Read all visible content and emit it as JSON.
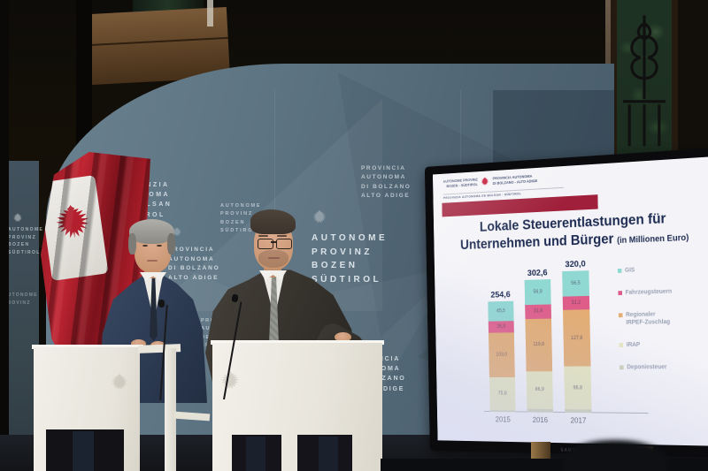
{
  "backdrop": {
    "blocks": [
      {
        "text": "PROVINZIA\nAUTONOMA\nDE BULSAN\nSÜDTIROL"
      },
      {
        "text": "AUTONOME\nPROVINZ\nBOZEN\nSÜDTIROL"
      },
      {
        "text": "AUTONOME\nPROVINZ\nBOZEN\nSÜDTIROL"
      },
      {
        "text": "PROVINCIA\nAUTONOMA\nDI BOLZANO\nALTO ADIGE"
      },
      {
        "text": "PROVINZIA\nAUTONOMA\nDE BULSAN\nSÜDTIROL"
      },
      {
        "text": "PROVINCIA\nAUTONOMA\nDI BOLZANO\nALTO ADIGE"
      },
      {
        "text": "PROVINCIA\nAUTONOMA\nDI BOLZANO\nALTO ADIGE"
      }
    ]
  },
  "left_banner": {
    "block1": "AUTONOME\nPROVINZ\nBOZEN\nSÜDTIROL",
    "block2": "AUTONOME\nPROVINZ"
  },
  "tv": {
    "brand": "SAMSUNG",
    "slide": {
      "logo_left": "AUTONOME PROVINZ\nBOZEN - SÜDTIROL",
      "logo_right": "PROVINCIA AUTONOMA\nDI BOLZANO - ALTO ADIGE",
      "logo_sub": "PROVINZIA AUTONOMA DE BULSAN - SÜDTIROL",
      "title_line1": "Lokale Steuerentlastungen für",
      "title_line2": "Unternehmen und Bürger",
      "title_suffix": "(in Millionen Euro)"
    }
  },
  "chart_data": {
    "type": "bar",
    "stacked": true,
    "title": "Lokale Steuerentlastungen für Unternehmen und Bürger",
    "subtitle": "(in Millionen Euro)",
    "categories": [
      "2015",
      "2016",
      "2017"
    ],
    "totals": [
      "254,6",
      "302,6",
      "320,0"
    ],
    "series": [
      {
        "name": "Deponiesteuer",
        "color": "#cdd1ba",
        "values": [
          3.4,
          7.2,
          7.7
        ]
      },
      {
        "name": "IRAP",
        "color": "#e6e6bf",
        "values": [
          75.8,
          86.9,
          96.8
        ]
      },
      {
        "name": "Regionaler IRPEF-Zuschlag",
        "color": "#e3ad74",
        "values": [
          103.0,
          119.8,
          127.8
        ]
      },
      {
        "name": "Fahrzeugsteuern",
        "color": "#df5d89",
        "values": [
          26.9,
          31.8,
          31.2
        ]
      },
      {
        "name": "GIS",
        "color": "#90d8d2",
        "values": [
          45.5,
          56.9,
          56.5
        ]
      }
    ],
    "legend_items": [
      {
        "label": "GIS",
        "color": "#90d8d2"
      },
      {
        "label": "Fahrzeugsteuern",
        "color": "#df5d89"
      },
      {
        "label": "Regionaler\nIRPEF-Zuschlag",
        "color": "#e3ad74"
      },
      {
        "label": "IRAP",
        "color": "#e6e6bf"
      },
      {
        "label": "Deponiesteuer",
        "color": "#cdd1ba"
      }
    ],
    "ylim": [
      0,
      330
    ],
    "legend_position": "right",
    "grid": false,
    "xlabel": "",
    "ylabel": ""
  }
}
